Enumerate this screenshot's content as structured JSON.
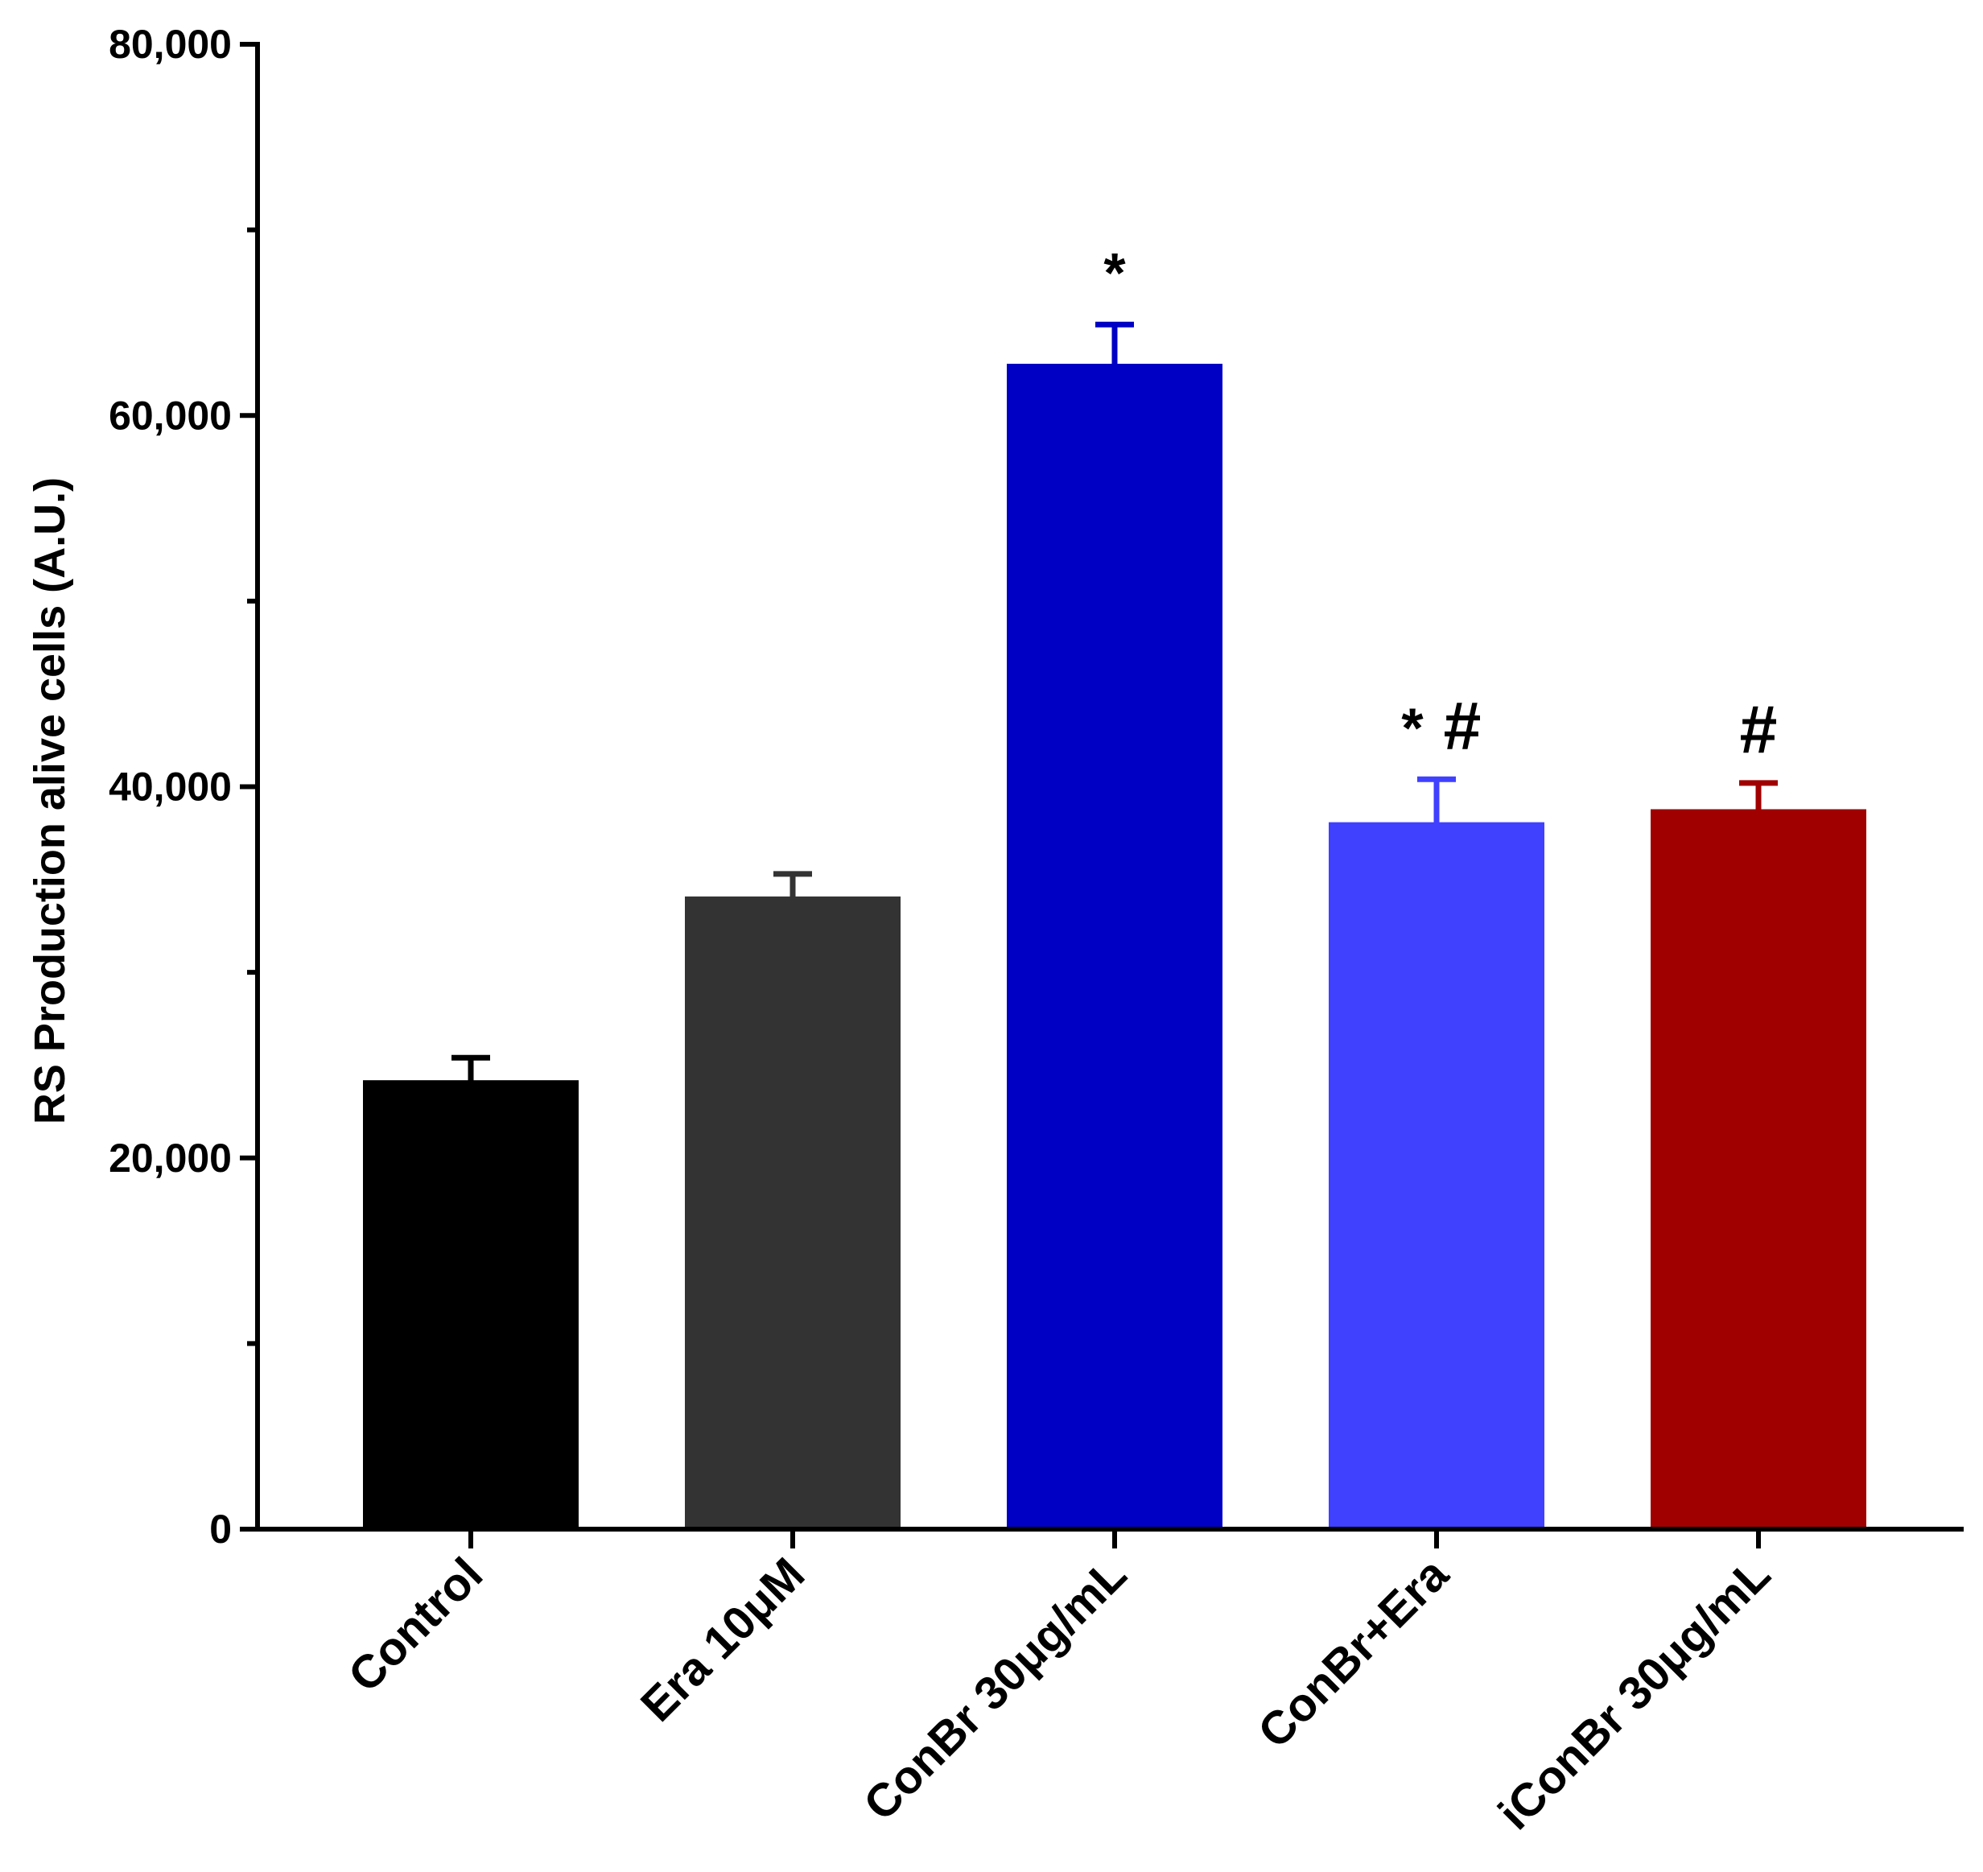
{
  "chart_data": {
    "type": "bar",
    "ylabel": "RS Production alive cells (A.U.)",
    "xlabel": "",
    "ylim": [
      0,
      80000
    ],
    "yticks": [
      0,
      20000,
      40000,
      60000,
      80000
    ],
    "ytick_labels": [
      "0",
      "20,000",
      "40,000",
      "60,000",
      "80,000"
    ],
    "minor_ytick_step": 10000,
    "grid": false,
    "categories": [
      "Control",
      "Era 10μM",
      "ConBr 30μg/mL",
      "ConBr+Era",
      "iConBr 30μg/mL"
    ],
    "values": [
      24100,
      34000,
      62700,
      38000,
      38700
    ],
    "errors": [
      1300,
      1300,
      2200,
      2400,
      1500
    ],
    "colors": [
      "#000000",
      "#333333",
      "#0000C4",
      "#4040FF",
      "#A00000"
    ],
    "annotations": [
      {
        "category_index": 2,
        "markers": [
          "*"
        ]
      },
      {
        "category_index": 3,
        "markers": [
          "*",
          "#"
        ]
      },
      {
        "category_index": 4,
        "markers": [
          "#"
        ]
      }
    ]
  }
}
